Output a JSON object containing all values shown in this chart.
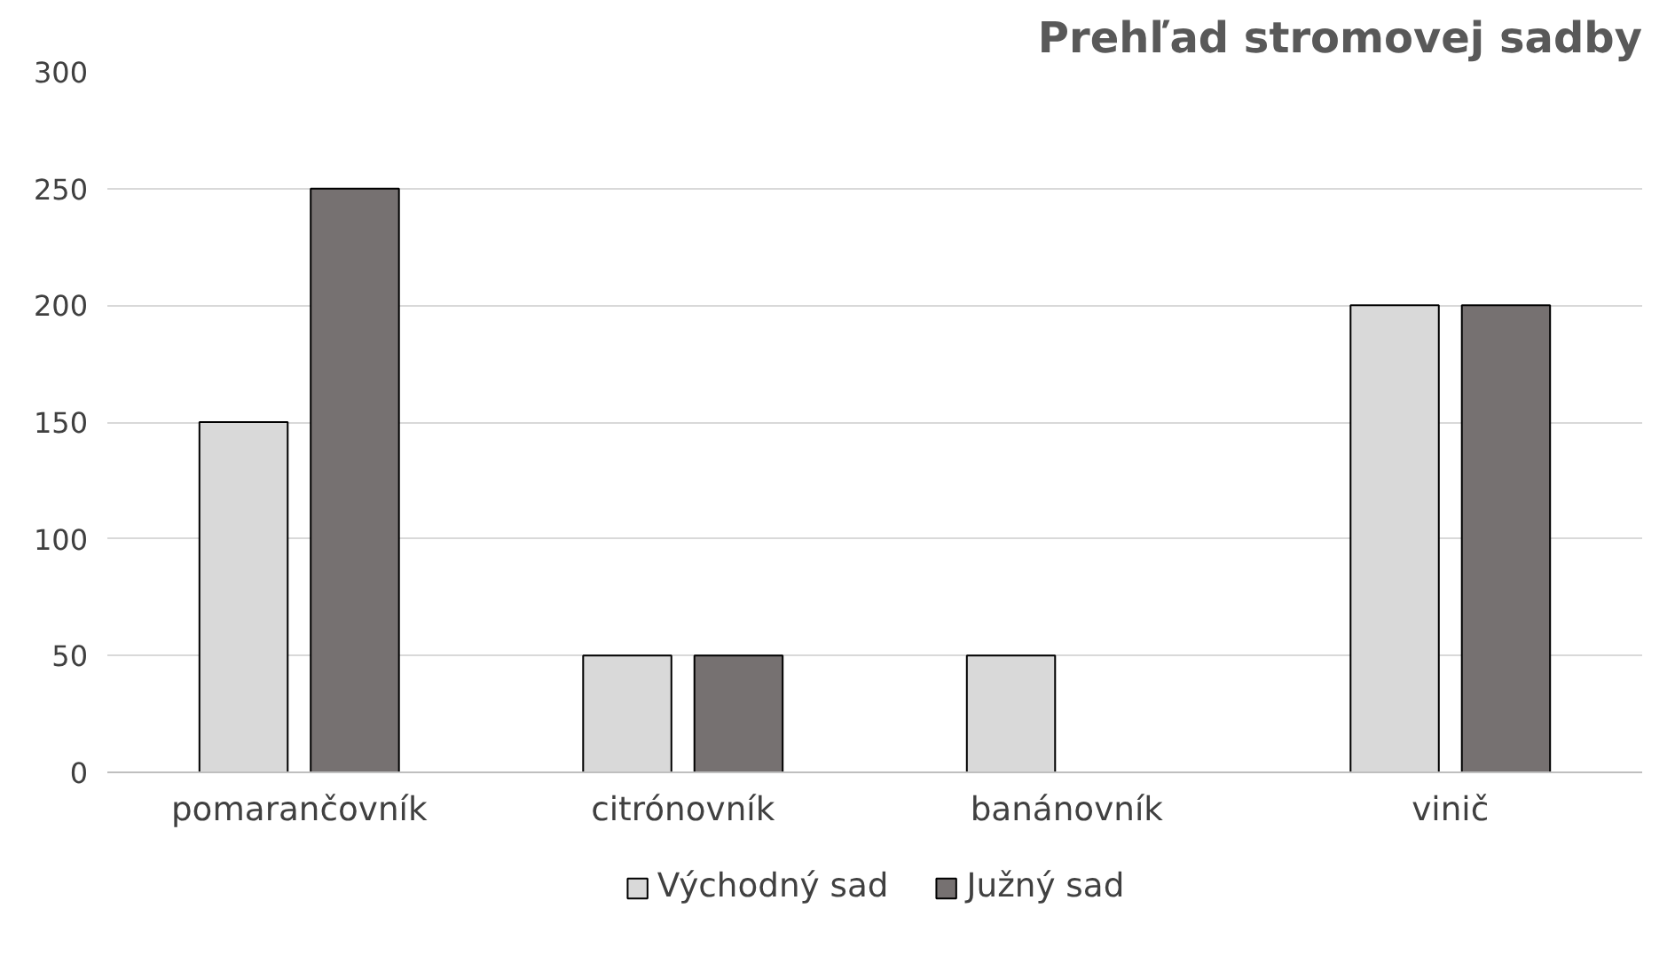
{
  "chart_data": {
    "type": "bar",
    "title": "Prehľad stromovej sadby",
    "categories": [
      "pomarančovník",
      "citrónovník",
      "banánovník",
      "vinič"
    ],
    "series": [
      {
        "name": "Východný sad",
        "color": "#d9d9d9",
        "values": [
          150,
          50,
          50,
          200
        ]
      },
      {
        "name": "Južný sad",
        "color": "#767171",
        "values": [
          250,
          50,
          null,
          200
        ]
      }
    ],
    "ylim": [
      0,
      300
    ],
    "yticks": [
      0,
      50,
      100,
      150,
      200,
      250,
      300
    ],
    "grid": "y",
    "legend": "bottom"
  }
}
